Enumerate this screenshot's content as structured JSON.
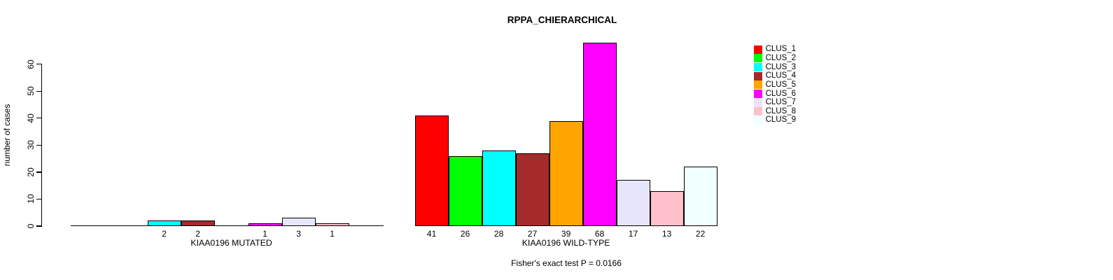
{
  "chart_data": {
    "type": "bar",
    "title": "RPPA_CHIERARCHICAL",
    "ylabel": "number of cases",
    "ylim": [
      0,
      68
    ],
    "yticks": [
      0,
      10,
      20,
      30,
      40,
      50,
      60
    ],
    "grid": false,
    "background": "#FFFFFF",
    "axis_color": "#000000",
    "bar_border_color": "#000000",
    "categories": [
      "CLUS_1",
      "CLUS_2",
      "CLUS_3",
      "CLUS_4",
      "CLUS_5",
      "CLUS_6",
      "CLUS_7",
      "CLUS_8",
      "CLUS_9"
    ],
    "legend": {
      "position": "top-right",
      "entries": [
        {
          "label": "CLUS_1",
          "color": "#FF0000"
        },
        {
          "label": "CLUS_2",
          "color": "#00FF00"
        },
        {
          "label": "CLUS_3",
          "color": "#00FFFF"
        },
        {
          "label": "CLUS_4",
          "color": "#A52A2A"
        },
        {
          "label": "CLUS_5",
          "color": "#FFA500"
        },
        {
          "label": "CLUS_6",
          "color": "#FF00FF"
        },
        {
          "label": "CLUS_7",
          "color": "#E6E6FA"
        },
        {
          "label": "CLUS_8",
          "color": "#FFC0CB"
        },
        {
          "label": "CLUS_9",
          "color": "#F0FFFF"
        }
      ]
    },
    "groups": [
      {
        "label": "KIAA0196 MUTATED",
        "values": [
          0,
          0,
          2,
          2,
          0,
          1,
          3,
          1,
          0
        ]
      },
      {
        "label": "KIAA0196 WILD-TYPE",
        "values": [
          41,
          26,
          28,
          27,
          39,
          68,
          17,
          13,
          22
        ]
      }
    ],
    "value_labels_shown": "nonzero bars only",
    "annotation": "Fisher's exact test P = 0.0166"
  }
}
